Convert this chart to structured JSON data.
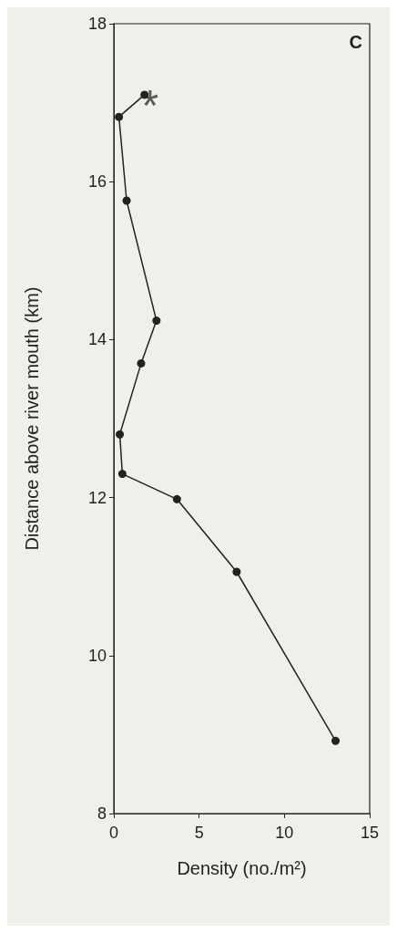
{
  "chart_data": {
    "type": "line",
    "xlabel": "Density (no./m²)",
    "ylabel": "Distance above river mouth (km)",
    "x": [
      1.8,
      0.3,
      0.75,
      2.5,
      1.6,
      0.35,
      0.5,
      3.7,
      7.2,
      13.0
    ],
    "values": [
      17.1,
      16.82,
      15.76,
      14.24,
      13.7,
      12.8,
      12.3,
      11.98,
      11.06,
      8.92
    ],
    "color": "#222222",
    "marker": "circle",
    "line_style": "solid",
    "grid": false,
    "xlim": [
      0,
      15
    ],
    "xticks": [
      0,
      5,
      10,
      15
    ],
    "ylim": [
      8,
      18
    ],
    "yticks": [
      8,
      10,
      12,
      14,
      16,
      18
    ],
    "annotations": [
      "C",
      {
        "text": "*",
        "x": 1.8,
        "y": 17.1
      }
    ]
  }
}
